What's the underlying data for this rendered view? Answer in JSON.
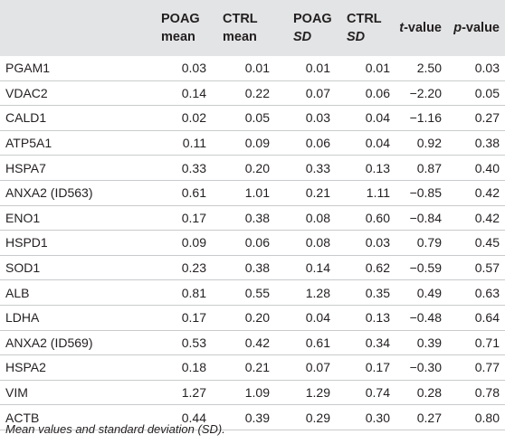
{
  "table": {
    "headers": [
      {
        "key": "gene",
        "lines": []
      },
      {
        "key": "poag_mean",
        "lines": [
          [
            {
              "text": "POAG",
              "italic": false
            }
          ],
          [
            {
              "text": "mean",
              "italic": false
            }
          ]
        ]
      },
      {
        "key": "ctrl_mean",
        "lines": [
          [
            {
              "text": "CTRL",
              "italic": false
            }
          ],
          [
            {
              "text": "mean",
              "italic": false
            }
          ]
        ]
      },
      {
        "key": "poag_sd",
        "lines": [
          [
            {
              "text": "POAG",
              "italic": false
            }
          ],
          [
            {
              "text": "SD",
              "italic": true
            }
          ]
        ]
      },
      {
        "key": "ctrl_sd",
        "lines": [
          [
            {
              "text": "CTRL",
              "italic": false
            }
          ],
          [
            {
              "text": "SD",
              "italic": true
            }
          ]
        ]
      },
      {
        "key": "t_value",
        "lines": [
          [
            {
              "text": "t",
              "italic": true
            },
            {
              "text": "-value",
              "italic": false
            }
          ]
        ]
      },
      {
        "key": "p_value",
        "lines": [
          [
            {
              "text": "p",
              "italic": true
            },
            {
              "text": "-value",
              "italic": false
            }
          ]
        ]
      }
    ],
    "rows": [
      {
        "gene": "PGAM1",
        "poag_mean": "0.03",
        "ctrl_mean": "0.01",
        "poag_sd": "0.01",
        "ctrl_sd": "0.01",
        "t_value": "2.50",
        "p_value": "0.03"
      },
      {
        "gene": "VDAC2",
        "poag_mean": "0.14",
        "ctrl_mean": "0.22",
        "poag_sd": "0.07",
        "ctrl_sd": "0.06",
        "t_value": "−2.20",
        "p_value": "0.05"
      },
      {
        "gene": "CALD1",
        "poag_mean": "0.02",
        "ctrl_mean": "0.05",
        "poag_sd": "0.03",
        "ctrl_sd": "0.04",
        "t_value": "−1.16",
        "p_value": "0.27"
      },
      {
        "gene": "ATP5A1",
        "poag_mean": "0.11",
        "ctrl_mean": "0.09",
        "poag_sd": "0.06",
        "ctrl_sd": "0.04",
        "t_value": "0.92",
        "p_value": "0.38"
      },
      {
        "gene": "HSPA7",
        "poag_mean": "0.33",
        "ctrl_mean": "0.20",
        "poag_sd": "0.33",
        "ctrl_sd": "0.13",
        "t_value": "0.87",
        "p_value": "0.40"
      },
      {
        "gene": "ANXA2 (ID563)",
        "poag_mean": "0.61",
        "ctrl_mean": "1.01",
        "poag_sd": "0.21",
        "ctrl_sd": "1.11",
        "t_value": "−0.85",
        "p_value": "0.42"
      },
      {
        "gene": "ENO1",
        "poag_mean": "0.17",
        "ctrl_mean": "0.38",
        "poag_sd": "0.08",
        "ctrl_sd": "0.60",
        "t_value": "−0.84",
        "p_value": "0.42"
      },
      {
        "gene": "HSPD1",
        "poag_mean": "0.09",
        "ctrl_mean": "0.06",
        "poag_sd": "0.08",
        "ctrl_sd": "0.03",
        "t_value": "0.79",
        "p_value": "0.45"
      },
      {
        "gene": "SOD1",
        "poag_mean": "0.23",
        "ctrl_mean": "0.38",
        "poag_sd": "0.14",
        "ctrl_sd": "0.62",
        "t_value": "−0.59",
        "p_value": "0.57"
      },
      {
        "gene": "ALB",
        "poag_mean": "0.81",
        "ctrl_mean": "0.55",
        "poag_sd": "1.28",
        "ctrl_sd": "0.35",
        "t_value": "0.49",
        "p_value": "0.63"
      },
      {
        "gene": "LDHA",
        "poag_mean": "0.17",
        "ctrl_mean": "0.20",
        "poag_sd": "0.04",
        "ctrl_sd": "0.13",
        "t_value": "−0.48",
        "p_value": "0.64"
      },
      {
        "gene": "ANXA2 (ID569)",
        "poag_mean": "0.53",
        "ctrl_mean": "0.42",
        "poag_sd": "0.61",
        "ctrl_sd": "0.34",
        "t_value": "0.39",
        "p_value": "0.71"
      },
      {
        "gene": "HSPA2",
        "poag_mean": "0.18",
        "ctrl_mean": "0.21",
        "poag_sd": "0.07",
        "ctrl_sd": "0.17",
        "t_value": "−0.30",
        "p_value": "0.77"
      },
      {
        "gene": "VIM",
        "poag_mean": "1.27",
        "ctrl_mean": "1.09",
        "poag_sd": "1.29",
        "ctrl_sd": "0.74",
        "t_value": "0.28",
        "p_value": "0.78"
      },
      {
        "gene": "ACTB",
        "poag_mean": "0.44",
        "ctrl_mean": "0.39",
        "poag_sd": "0.29",
        "ctrl_sd": "0.30",
        "t_value": "0.27",
        "p_value": "0.80"
      }
    ]
  },
  "footnote": "Mean values and standard deviation (SD).",
  "colors": {
    "header_background": "#e3e4e5",
    "row_divider": "#c9cacb",
    "text": "#231f20"
  }
}
